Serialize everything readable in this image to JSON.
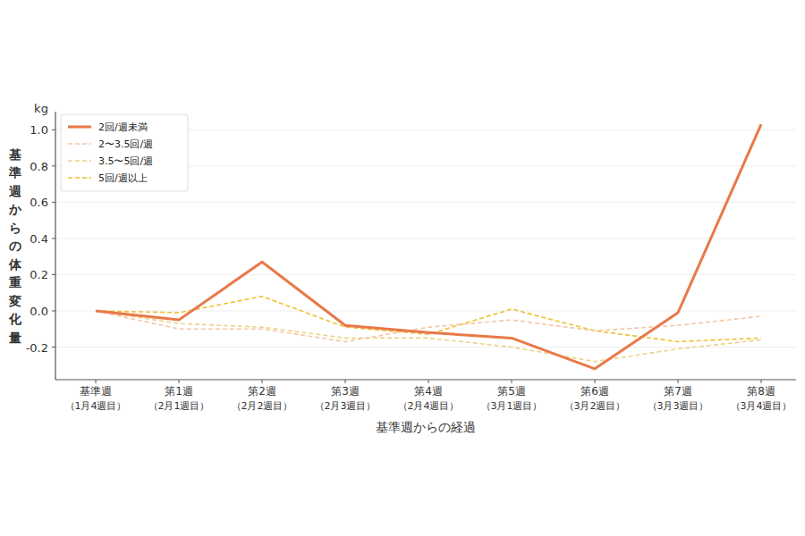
{
  "chart_data": {
    "type": "line",
    "x_label": "基準週からの経過",
    "y_label": "基準週からの体重変化量",
    "y_unit": "kg",
    "categories": [
      "基準週\n（1月4週目）",
      "第1週\n（2月1週目）",
      "第2週\n（2月2週目）",
      "第3週\n（2月3週目）",
      "第4週\n（2月4週目）",
      "第5週\n（3月1週目）",
      "第6週\n（3月2週目）",
      "第7週\n（3月3週目）",
      "第8週\n（3月4週目）"
    ],
    "series": [
      {
        "name": "2回/週未満",
        "color": "#e8794a",
        "line_style": "solid",
        "values": [
          0,
          -0.05,
          0.27,
          -0.08,
          -0.12,
          -0.15,
          -0.32,
          -0.01,
          1.03
        ]
      },
      {
        "name": "2〜3.5回/週",
        "color": "#f5c6a5",
        "line_style": "dashed",
        "values": [
          0,
          -0.1,
          -0.1,
          -0.17,
          -0.09,
          -0.05,
          -0.11,
          -0.08,
          -0.03
        ]
      },
      {
        "name": "3.5〜5回/週",
        "color": "#e9d48a",
        "line_style": "dashed",
        "values": [
          0,
          -0.07,
          -0.09,
          -0.15,
          -0.15,
          -0.2,
          -0.28,
          -0.21,
          -0.16
        ]
      },
      {
        "name": "5回/週以上",
        "color": "#f0c030",
        "line_style": "dashed",
        "values": [
          0,
          -0.01,
          0.08,
          -0.09,
          -0.13,
          0.01,
          -0.11,
          -0.17,
          -0.15
        ]
      }
    ],
    "ylim": [
      -0.38,
      1.1
    ],
    "yticks": [
      -0.2,
      {
        "value": 0,
        "label": "0.0"
      },
      0.2,
      0.4,
      0.6,
      0.8,
      {
        "value": 1,
        "label": "1.0"
      }
    ],
    "grid": true,
    "legend": "upper-left"
  }
}
